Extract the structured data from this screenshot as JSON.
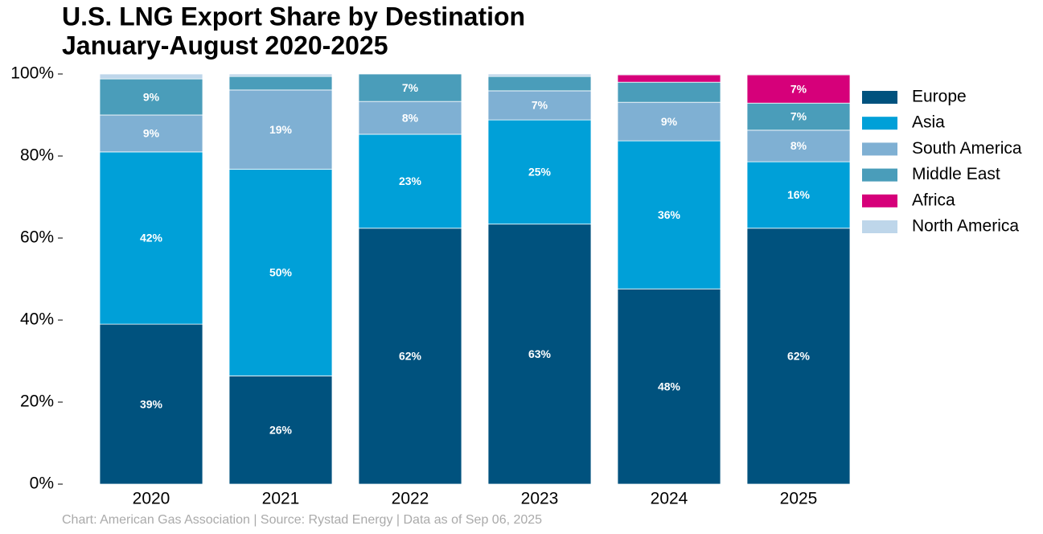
{
  "chart_data": {
    "type": "stacked_bar",
    "title": "U.S. LNG Export Share by Destination",
    "subtitle": "January-August 2020-2025",
    "source": "Chart: American Gas Association  |  Source: Rystad Energy  |  Data as of Sep 06, 2025",
    "categories": [
      "2020",
      "2021",
      "2022",
      "2023",
      "2024",
      "2025"
    ],
    "series": [
      {
        "name": "Europe",
        "color": "#00527e",
        "values": [
          39,
          26.4,
          62.4,
          63.4,
          47.6,
          62.4
        ],
        "value_labels": [
          "39%",
          "26%",
          "62%",
          "63%",
          "48%",
          "62%"
        ]
      },
      {
        "name": "Asia",
        "color": "#00a0d8",
        "values": [
          42,
          50.4,
          22.9,
          25.4,
          36.1,
          16.2
        ],
        "value_labels": [
          "42%",
          "50%",
          "23%",
          "25%",
          "36%",
          "16%"
        ]
      },
      {
        "name": "South America",
        "color": "#7fb0d3",
        "values": [
          9,
          19.3,
          8,
          7.1,
          9.4,
          7.7
        ],
        "value_labels": [
          "9%",
          "19%",
          "8%",
          "7%",
          "9%",
          "8%"
        ]
      },
      {
        "name": "Middle East",
        "color": "#4a9dba",
        "values": [
          8.8,
          3.3,
          6.7,
          3.5,
          4.9,
          6.6
        ],
        "value_labels": [
          "9%",
          null,
          "7%",
          null,
          null,
          "7%"
        ]
      },
      {
        "name": "Africa",
        "color": "#d6007a",
        "values": [
          0,
          0,
          0,
          0,
          1.8,
          6.9
        ],
        "value_labels": [
          null,
          null,
          null,
          null,
          null,
          "7%"
        ]
      },
      {
        "name": "North America",
        "color": "#bed6ea",
        "values": [
          1.2,
          0.6,
          0,
          0.6,
          0.2,
          0.2
        ],
        "value_labels": [
          null,
          null,
          null,
          null,
          null,
          null
        ]
      }
    ],
    "ylim": [
      0,
      100
    ],
    "yticks": [
      {
        "value": 0,
        "label": "0%"
      },
      {
        "value": 20,
        "label": "20%"
      },
      {
        "value": 40,
        "label": "40%"
      },
      {
        "value": 60,
        "label": "60%"
      },
      {
        "value": 80,
        "label": "80%"
      },
      {
        "value": 100,
        "label": "100%"
      }
    ],
    "grid": false,
    "legend": "right"
  }
}
